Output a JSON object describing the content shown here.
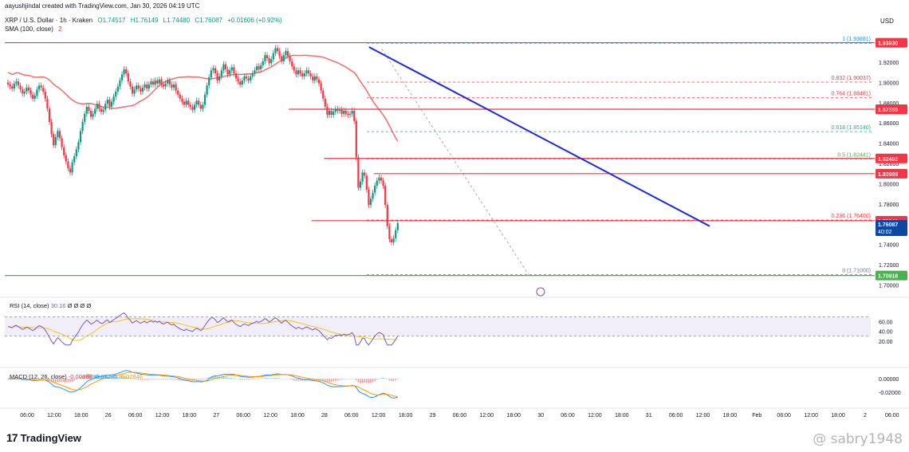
{
  "header": {
    "created_by": "aayushjindal created with TradingView.com, Jan 30, 2026 04:19 UTC",
    "symbol": "XRP / U.S. Dollar · 1h · Kraken",
    "ohlc": {
      "o": "O1.74517",
      "h": "H1.76149",
      "l": "L1.74480",
      "c": "C1.76087",
      "chg": "+0.01606 (+0.92%)"
    },
    "sma_label": "SMA (100, close)",
    "sma_value": "2"
  },
  "colors": {
    "up": "#089981",
    "down": "#f23645",
    "line": "#f23645",
    "green": "#4caf50",
    "trend": "#1f2bd6",
    "sma": "#ef5350",
    "rsi": "#7e57c2",
    "macd": "#2196f3",
    "signal": "#ff9800"
  },
  "chart_data": [
    {
      "type": "candlestick",
      "ylabel": "USD",
      "ylim": [
        1.69,
        1.95
      ],
      "y_ticks": [
        "1.92000",
        "1.90000",
        "1.88000",
        "1.86000",
        "1.84000",
        "1.82000",
        "1.80000",
        "1.78000",
        "1.76000",
        "1.74000",
        "1.72000",
        "1.70000"
      ],
      "x_ticks": [
        "06:00",
        "12:00",
        "18:00",
        "26",
        "06:00",
        "12:00",
        "18:00",
        "27",
        "06:00",
        "12:00",
        "18:00",
        "28",
        "06:00",
        "12:00",
        "18:00",
        "29",
        "06:00",
        "12:00",
        "18:00",
        "30",
        "06:00",
        "12:00",
        "18:00",
        "31",
        "06:00",
        "12:00",
        "18:00",
        "Feb",
        "06:00",
        "12:00",
        "18:00",
        "2",
        "06:00"
      ],
      "price_tags": [
        {
          "value": 1.9393,
          "label": "1.93930",
          "kind": "red"
        },
        {
          "value": 1.87355,
          "label": "1.87355",
          "kind": "red"
        },
        {
          "value": 1.82492,
          "label": "1.82492",
          "kind": "red"
        },
        {
          "value": 1.80989,
          "label": "1.80989",
          "kind": "red"
        },
        {
          "value": 1.76341,
          "label": "1.76341",
          "kind": "red"
        },
        {
          "value": 1.70918,
          "label": "1.70918",
          "kind": "green"
        }
      ],
      "current": {
        "value": 1.76087,
        "label": "1.76087",
        "countdown": "40:02"
      },
      "fib_levels": [
        {
          "ratio": "1",
          "value": 1.93881,
          "label": "1 (1.93881)",
          "color": "#2196f3"
        },
        {
          "ratio": "0.832",
          "value": 1.90037,
          "label": "0.832 (1.90037)",
          "color": "#f23645"
        },
        {
          "ratio": "0.764",
          "value": 1.88481,
          "label": "0.764 (1.88481)",
          "color": "#f23645"
        },
        {
          "ratio": "0.618",
          "value": 1.8514,
          "label": "0.618 (1.85140)",
          "color": "#22ab94"
        },
        {
          "ratio": "0.5",
          "value": 1.82441,
          "label": "0.5 (1.82441)",
          "color": "#4caf50"
        },
        {
          "ratio": "0.236",
          "value": 1.764,
          "label": "0.236 (1.76400)",
          "color": "#f23645"
        },
        {
          "ratio": "0",
          "value": 1.71,
          "label": "0 (1.71000)",
          "color": "#787b86"
        }
      ],
      "hlines": [
        {
          "value": 1.9393,
          "from_index": 0
        },
        {
          "value": 1.87355,
          "from_index": 97
        },
        {
          "value": 1.82492,
          "from_index": 114
        },
        {
          "value": 1.80989,
          "from_index": 138
        },
        {
          "value": 1.76341,
          "from_index": 108
        }
      ],
      "green_line": 1.70918,
      "trendline": {
        "from": {
          "index": 128,
          "value": 1.935
        },
        "to": {
          "index": 252,
          "value": 1.758
        }
      },
      "fib_diagonal": {
        "from": {
          "index": 138,
          "value": 1.933
        },
        "to": {
          "index": 188,
          "value": 1.71
        }
      },
      "close": [
        1.898,
        1.896,
        1.894,
        1.899,
        1.901,
        1.897,
        1.893,
        1.889,
        1.891,
        1.895,
        1.892,
        1.888,
        1.884,
        1.887,
        1.893,
        1.897,
        1.895,
        1.891,
        1.884,
        1.874,
        1.861,
        1.849,
        1.838,
        1.846,
        1.852,
        1.845,
        1.836,
        1.828,
        1.822,
        1.815,
        1.811,
        1.821,
        1.827,
        1.834,
        1.841,
        1.852,
        1.861,
        1.869,
        1.876,
        1.872,
        1.866,
        1.869,
        1.874,
        1.879,
        1.874,
        1.871,
        1.873,
        1.879,
        1.883,
        1.876,
        1.881,
        1.886,
        1.891,
        1.896,
        1.902,
        1.908,
        1.913,
        1.909,
        1.901,
        1.896,
        1.889,
        1.893,
        1.897,
        1.894,
        1.891,
        1.895,
        1.898,
        1.894,
        1.898,
        1.901,
        1.898,
        1.902,
        1.899,
        1.903,
        1.898,
        1.896,
        1.899,
        1.902,
        1.898,
        1.895,
        1.898,
        1.892,
        1.888,
        1.884,
        1.881,
        1.878,
        1.882,
        1.878,
        1.876,
        1.873,
        1.878,
        1.882,
        1.878,
        1.874,
        1.878,
        1.888,
        1.897,
        1.905,
        1.912,
        1.914,
        1.909,
        1.902,
        1.906,
        1.912,
        1.918,
        1.913,
        1.908,
        1.912,
        1.915,
        1.909,
        1.904,
        1.901,
        1.898,
        1.902,
        1.906,
        1.904,
        1.902,
        1.906,
        1.909,
        1.912,
        1.916,
        1.913,
        1.917,
        1.921,
        1.927,
        1.924,
        1.919,
        1.923,
        1.929,
        1.934,
        1.931,
        1.926,
        1.921,
        1.927,
        1.931,
        1.926,
        1.921,
        1.916,
        1.912,
        1.908,
        1.912,
        1.909,
        1.906,
        1.909,
        1.912,
        1.909,
        1.906,
        1.902,
        1.906,
        1.903,
        1.899,
        1.892,
        1.884,
        1.876,
        1.868,
        1.872,
        1.868,
        1.871,
        1.874,
        1.872,
        1.873,
        1.869,
        1.872,
        1.869,
        1.868,
        1.869,
        1.872,
        1.862,
        1.826,
        1.796,
        1.802,
        1.811,
        1.808,
        1.794,
        1.779,
        1.785,
        1.791,
        1.798,
        1.803,
        1.806,
        1.803,
        1.798,
        1.779,
        1.758,
        1.745,
        1.742,
        1.746,
        1.754,
        1.761
      ],
      "series": [
        {
          "name": "SMA (100, close)",
          "values_note": "moving average overlay"
        }
      ]
    },
    {
      "type": "line",
      "title": "RSI (14, close)",
      "value_label": "30.16",
      "extra": "Ø Ø Ø Ø",
      "ylim": [
        0,
        100
      ],
      "y_ticks": [
        "60.00",
        "40.00",
        "20.00"
      ],
      "band": [
        30,
        70
      ]
    },
    {
      "type": "line",
      "title": "MACD (12, 26, close)",
      "values_label": [
        "-0.00388",
        "-0.03235",
        "-0.02846"
      ],
      "ylim": [
        -0.035,
        0.012
      ],
      "y_ticks": [
        "0.00000",
        "-0.02000"
      ]
    }
  ],
  "brand": {
    "logo": "17",
    "name": "TradingView"
  },
  "watermark": "@ sabry1948"
}
